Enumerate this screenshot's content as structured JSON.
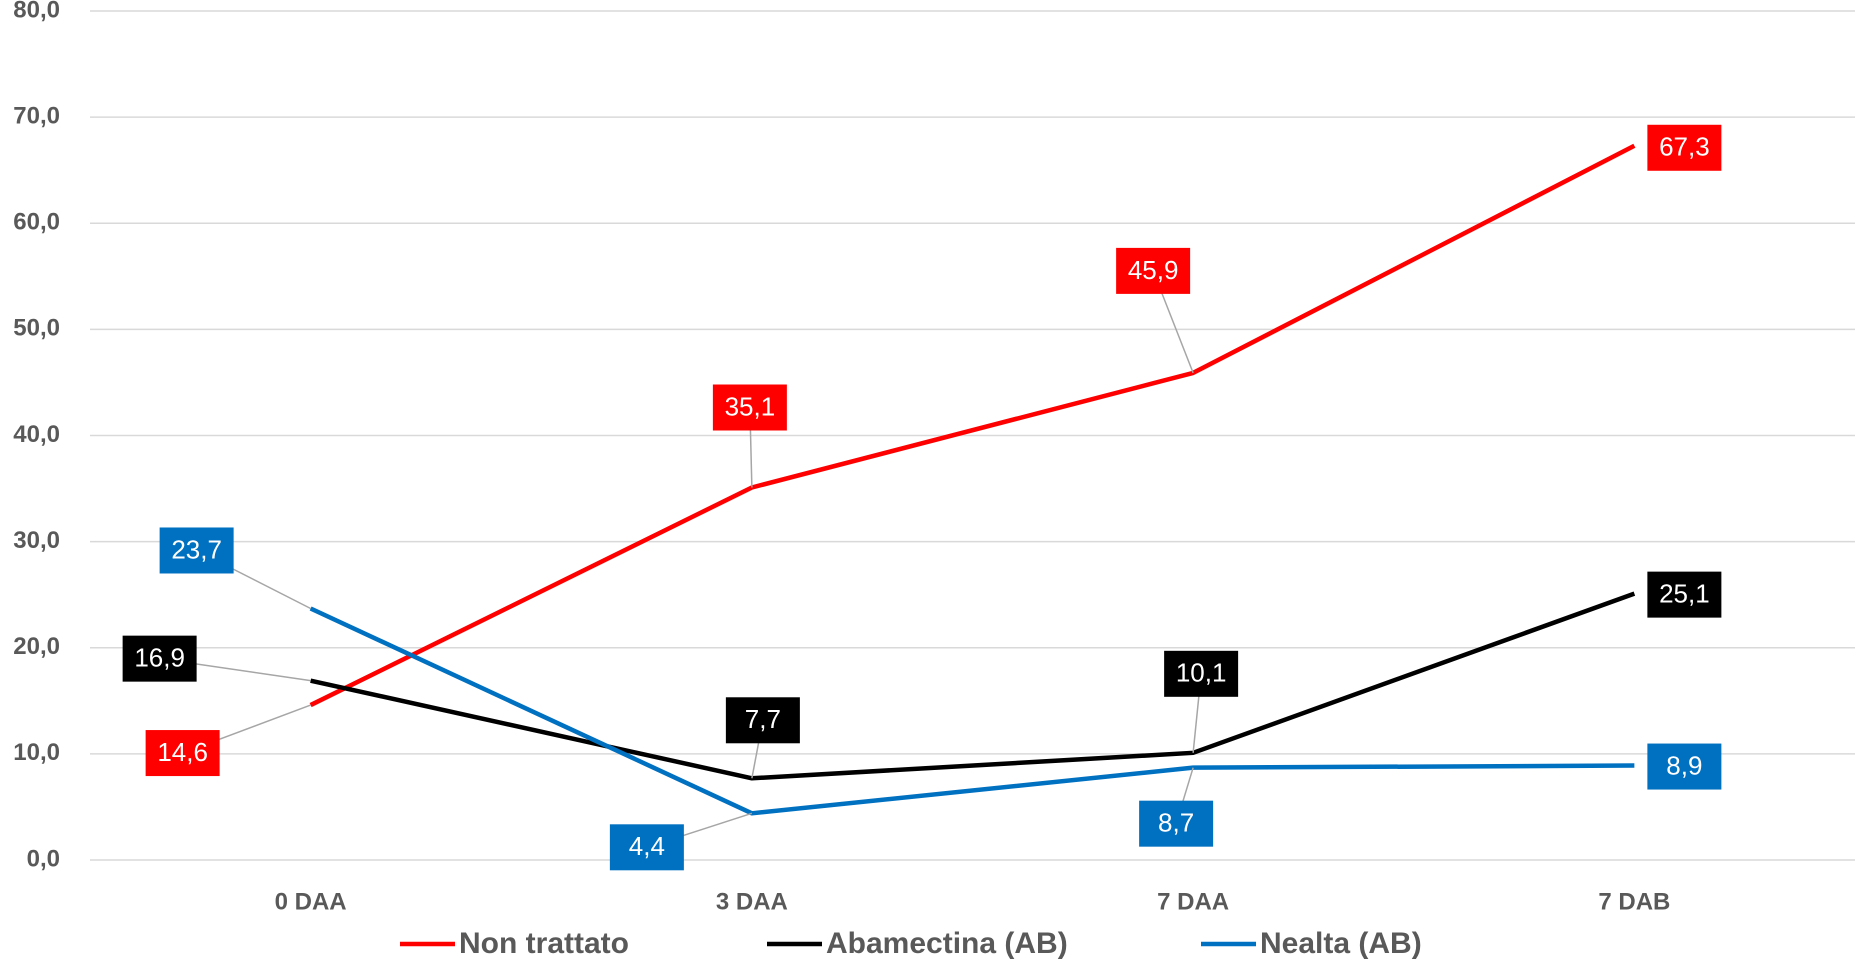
{
  "chart_data": {
    "type": "line",
    "categories": [
      "0 DAA",
      "3 DAA",
      "7 DAA",
      "7 DAB"
    ],
    "series": [
      {
        "name": "Non trattato",
        "color": "#ff0000",
        "values": [
          14.6,
          35.1,
          45.9,
          67.3
        ],
        "value_labels": [
          "14,6",
          "35,1",
          "45,9",
          "67,3"
        ]
      },
      {
        "name": "Abamectina (AB)",
        "color": "#000000",
        "values": [
          16.9,
          7.7,
          10.1,
          25.1
        ],
        "value_labels": [
          "16,9",
          "7,7",
          "10,1",
          "25,1"
        ]
      },
      {
        "name": "Nealta (AB)",
        "color": "#0070c0",
        "values": [
          23.7,
          4.4,
          8.7,
          8.9
        ],
        "value_labels": [
          "23,7",
          "4,4",
          "8,7",
          "8,9"
        ]
      }
    ],
    "ylim": [
      0,
      80
    ],
    "yticks": [
      {
        "value": 0,
        "label": "0,0"
      },
      {
        "value": 10,
        "label": "10,0"
      },
      {
        "value": 20,
        "label": "20,0"
      },
      {
        "value": 30,
        "label": "30,0"
      },
      {
        "value": 40,
        "label": "40,0"
      },
      {
        "value": 50,
        "label": "50,0"
      },
      {
        "value": 60,
        "label": "60,0"
      },
      {
        "value": 70,
        "label": "70,0"
      },
      {
        "value": 80,
        "label": "80,0"
      }
    ],
    "grid": true,
    "legend": "bottom"
  }
}
